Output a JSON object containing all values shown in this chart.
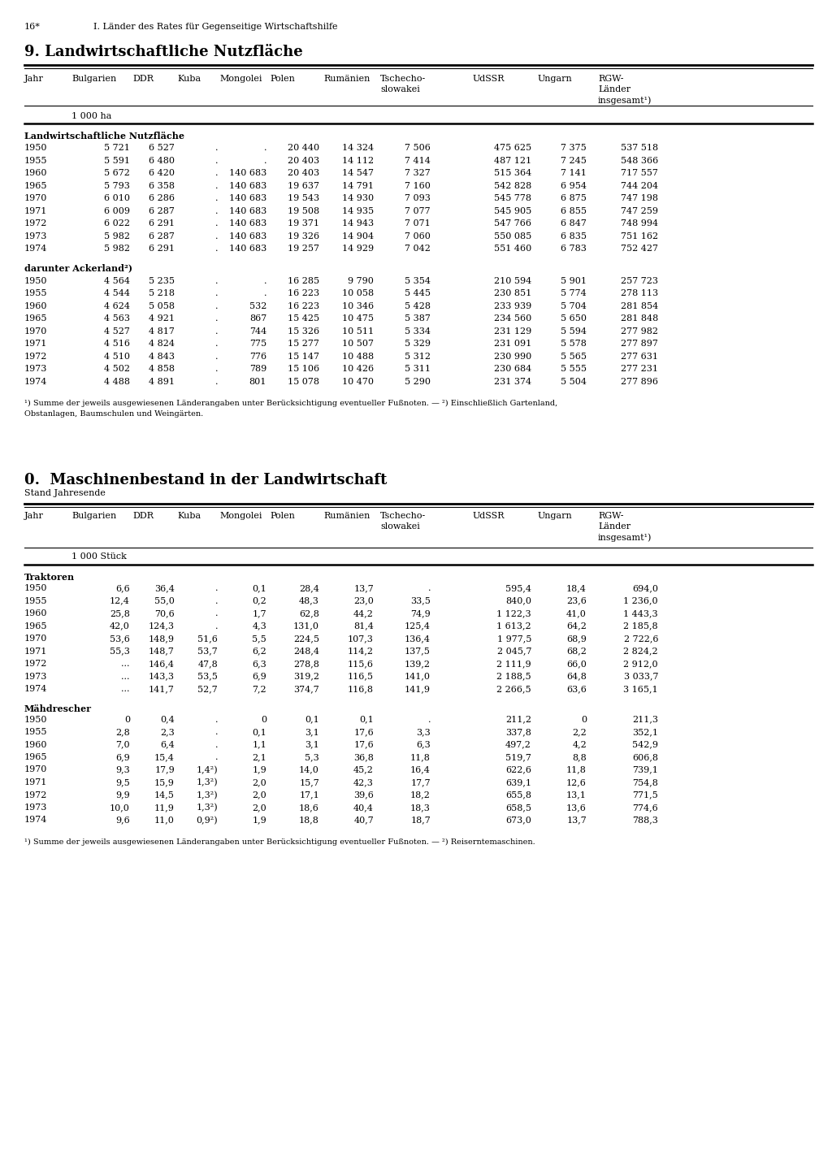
{
  "page_header_left": "16*",
  "page_header_right": "I. Länder des Rates für Gegenseitige Wirtschaftshilfe",
  "section1_title": "9. Landwirtschaftliche Nutzfläche",
  "col_hdrs": [
    "Jahr",
    "Bulgarien",
    "DDR",
    "Kuba",
    "Mongolei",
    "Polen",
    "Rumänien",
    "Tschecho-\nslowakei",
    "UdSSR",
    "Ungarn",
    "RGW-\nLänder\ninsgesamt¹)"
  ],
  "unit1": "1 000 ha",
  "subsection1": "Landwirtschaftliche Nutzfläche",
  "table1": [
    [
      "1950",
      "5 721",
      "6 527",
      ".",
      ".",
      "20 440",
      "14 324",
      "7 506",
      "475 625",
      "7 375",
      "537 518"
    ],
    [
      "1955",
      "5 591",
      "6 480",
      ".",
      ".",
      "20 403",
      "14 112",
      "7 414",
      "487 121",
      "7 245",
      "548 366"
    ],
    [
      "1960",
      "5 672",
      "6 420",
      ".",
      "140 683",
      "20 403",
      "14 547",
      "7 327",
      "515 364",
      "7 141",
      "717 557"
    ],
    [
      "1965",
      "5 793",
      "6 358",
      ".",
      "140 683",
      "19 637",
      "14 791",
      "7 160",
      "542 828",
      "6 954",
      "744 204"
    ],
    [
      "1970",
      "6 010",
      "6 286",
      ".",
      "140 683",
      "19 543",
      "14 930",
      "7 093",
      "545 778",
      "6 875",
      "747 198"
    ],
    [
      "1971",
      "6 009",
      "6 287",
      ".",
      "140 683",
      "19 508",
      "14 935",
      "7 077",
      "545 905",
      "6 855",
      "747 259"
    ],
    [
      "1972",
      "6 022",
      "6 291",
      ".",
      "140 683",
      "19 371",
      "14 943",
      "7 071",
      "547 766",
      "6 847",
      "748 994"
    ],
    [
      "1973",
      "5 982",
      "6 287",
      ".",
      "140 683",
      "19 326",
      "14 904",
      "7 060",
      "550 085",
      "6 835",
      "751 162"
    ],
    [
      "1974",
      "5 982",
      "6 291",
      ".",
      "140 683",
      "19 257",
      "14 929",
      "7 042",
      "551 460",
      "6 783",
      "752 427"
    ]
  ],
  "subsection2": "darunter Ackerland²)",
  "table2": [
    [
      "1950",
      "4 564",
      "5 235",
      ".",
      ".",
      "16 285",
      "9 790",
      "5 354",
      "210 594",
      "5 901",
      "257 723"
    ],
    [
      "1955",
      "4 544",
      "5 218",
      ".",
      ".",
      "16 223",
      "10 058",
      "5 445",
      "230 851",
      "5 774",
      "278 113"
    ],
    [
      "1960",
      "4 624",
      "5 058",
      ".",
      "532",
      "16 223",
      "10 346",
      "5 428",
      "233 939",
      "5 704",
      "281 854"
    ],
    [
      "1965",
      "4 563",
      "4 921",
      ".",
      "867",
      "15 425",
      "10 475",
      "5 387",
      "234 560",
      "5 650",
      "281 848"
    ],
    [
      "1970",
      "4 527",
      "4 817",
      ".",
      "744",
      "15 326",
      "10 511",
      "5 334",
      "231 129",
      "5 594",
      "277 982"
    ],
    [
      "1971",
      "4 516",
      "4 824",
      ".",
      "775",
      "15 277",
      "10 507",
      "5 329",
      "231 091",
      "5 578",
      "277 897"
    ],
    [
      "1972",
      "4 510",
      "4 843",
      ".",
      "776",
      "15 147",
      "10 488",
      "5 312",
      "230 990",
      "5 565",
      "277 631"
    ],
    [
      "1973",
      "4 502",
      "4 858",
      ".",
      "789",
      "15 106",
      "10 426",
      "5 311",
      "230 684",
      "5 555",
      "277 231"
    ],
    [
      "1974",
      "4 488",
      "4 891",
      ".",
      "801",
      "15 078",
      "10 470",
      "5 290",
      "231 374",
      "5 504",
      "277 896"
    ]
  ],
  "footnote1_line1": "¹) Summe der jeweils ausgewiesenen Länderangaben unter Berücksichtigung eventueller Fußnoten. — ²) Einschließlich Gartenland,",
  "footnote1_line2": "Obstanlagen, Baumschulen und Weingärten.",
  "section2_title": "0.  Maschinenbestand in der Landwirtschaft",
  "section2_sub": "Stand Jahresende",
  "unit2": "1 000 Stück",
  "subsection3": "Traktoren",
  "table3": [
    [
      "1950",
      "6,6",
      "36,4",
      ".",
      "0,1",
      "28,4",
      "13,7",
      ".",
      "595,4",
      "18,4",
      "694,0"
    ],
    [
      "1955",
      "12,4",
      "55,0",
      ".",
      "0,2",
      "48,3",
      "23,0",
      "33,5",
      "840,0",
      "23,6",
      "1 236,0"
    ],
    [
      "1960",
      "25,8",
      "70,6",
      ".",
      "1,7",
      "62,8",
      "44,2",
      "74,9",
      "1 122,3",
      "41,0",
      "1 443,3"
    ],
    [
      "1965",
      "42,0",
      "124,3",
      ".",
      "4,3",
      "131,0",
      "81,4",
      "125,4",
      "1 613,2",
      "64,2",
      "2 185,8"
    ],
    [
      "1970",
      "53,6",
      "148,9",
      "51,6",
      "5,5",
      "224,5",
      "107,3",
      "136,4",
      "1 977,5",
      "68,9",
      "2 722,6"
    ],
    [
      "1971",
      "55,3",
      "148,7",
      "53,7",
      "6,2",
      "248,4",
      "114,2",
      "137,5",
      "2 045,7",
      "68,2",
      "2 824,2"
    ],
    [
      "1972",
      "...",
      "146,4",
      "47,8",
      "6,3",
      "278,8",
      "115,6",
      "139,2",
      "2 111,9",
      "66,0",
      "2 912,0"
    ],
    [
      "1973",
      "...",
      "143,3",
      "53,5",
      "6,9",
      "319,2",
      "116,5",
      "141,0",
      "2 188,5",
      "64,8",
      "3 033,7"
    ],
    [
      "1974",
      "...",
      "141,7",
      "52,7",
      "7,2",
      "374,7",
      "116,8",
      "141,9",
      "2 266,5",
      "63,6",
      "3 165,1"
    ]
  ],
  "subsection4": "Mähdrescher",
  "table4": [
    [
      "1950",
      "0",
      "0,4",
      ".",
      "0",
      "0,1",
      "0,1",
      ".",
      "211,2",
      "0",
      "211,3"
    ],
    [
      "1955",
      "2,8",
      "2,3",
      ".",
      "0,1",
      "3,1",
      "17,6",
      "3,3",
      "337,8",
      "2,2",
      "352,1"
    ],
    [
      "1960",
      "7,0",
      "6,4",
      ".",
      "1,1",
      "3,1",
      "17,6",
      "6,3",
      "497,2",
      "4,2",
      "542,9"
    ],
    [
      "1965",
      "6,9",
      "15,4",
      ".",
      "2,1",
      "5,3",
      "36,8",
      "11,8",
      "519,7",
      "8,8",
      "606,8"
    ],
    [
      "1970",
      "9,3",
      "17,9",
      "1,4²)",
      "1,9",
      "14,0",
      "45,2",
      "16,4",
      "622,6",
      "11,8",
      "739,1"
    ],
    [
      "1971",
      "9,5",
      "15,9",
      "1,3²)",
      "2,0",
      "15,7",
      "42,3",
      "17,7",
      "639,1",
      "12,6",
      "754,8"
    ],
    [
      "1972",
      "9,9",
      "14,5",
      "1,3²)",
      "2,0",
      "17,1",
      "39,6",
      "18,2",
      "655,8",
      "13,1",
      "771,5"
    ],
    [
      "1973",
      "10,0",
      "11,9",
      "1,3²)",
      "2,0",
      "18,6",
      "40,4",
      "18,3",
      "658,5",
      "13,6",
      "774,6"
    ],
    [
      "1974",
      "9,6",
      "11,0",
      "0,9²)",
      "1,9",
      "18,8",
      "40,7",
      "18,7",
      "673,0",
      "13,7",
      "788,3"
    ]
  ],
  "footnote2": "¹) Summe der jeweils ausgewiesenen Länderangaben unter Berücksichtigung eventueller Fußnoten. — ²) Reiserntemaschinen."
}
